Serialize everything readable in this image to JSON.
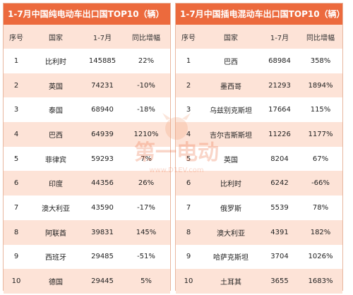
{
  "left": {
    "title": "1-7月中国纯电动车出口国TOP10（辆）",
    "headers": [
      "序号",
      "国家",
      "1-7月",
      "同比增幅"
    ],
    "rows": [
      [
        "1",
        "比利时",
        "145885",
        "22%"
      ],
      [
        "2",
        "英国",
        "74231",
        "-10%"
      ],
      [
        "3",
        "泰国",
        "68940",
        "-18%"
      ],
      [
        "4",
        "巴西",
        "64939",
        "1210%"
      ],
      [
        "5",
        "菲律宾",
        "59293",
        "7%"
      ],
      [
        "6",
        "印度",
        "44356",
        "26%"
      ],
      [
        "7",
        "澳大利亚",
        "43590",
        "-17%"
      ],
      [
        "8",
        "阿联酋",
        "39831",
        "145%"
      ],
      [
        "9",
        "西班牙",
        "29485",
        "-51%"
      ],
      [
        "10",
        "德国",
        "29445",
        "5%"
      ]
    ]
  },
  "right": {
    "title": "1-7月中国插电混动车出口国TOP10（辆）",
    "headers": [
      "序号",
      "国家",
      "1-7月",
      "同比增幅"
    ],
    "rows": [
      [
        "1",
        "巴西",
        "68984",
        "358%"
      ],
      [
        "2",
        "墨西哥",
        "21293",
        "1894%"
      ],
      [
        "3",
        "乌兹别克斯坦",
        "17664",
        "115%"
      ],
      [
        "4",
        "吉尔吉斯斯坦",
        "11226",
        "1177%"
      ],
      [
        "5",
        "英国",
        "8204",
        "67%"
      ],
      [
        "6",
        "比利时",
        "6242",
        "-66%"
      ],
      [
        "7",
        "俄罗斯",
        "5539",
        "78%"
      ],
      [
        "8",
        "澳大利亚",
        "4391",
        "182%"
      ],
      [
        "9",
        "哈萨克斯坦",
        "3704",
        "1026%"
      ],
      [
        "10",
        "土耳其",
        "3655",
        "1683%"
      ]
    ]
  },
  "watermark": {
    "text": "第一电动",
    "url_text": "www.D1EV.com"
  },
  "colors": {
    "title_bg": "#ec6a3d",
    "stripe": "#fde3d7",
    "border": "#e8b7a0"
  }
}
